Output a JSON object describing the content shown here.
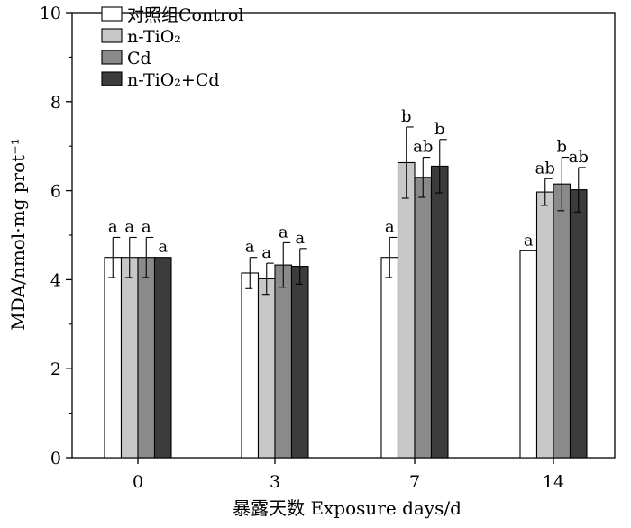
{
  "chart_data": {
    "type": "bar",
    "ylabel": "MDA/nmol·mg prot⁻¹",
    "xlabel": "暴露天数 Exposure days/d",
    "categories": [
      "0",
      "3",
      "7",
      "14"
    ],
    "ylim": [
      0,
      10
    ],
    "yticks": [
      "0",
      "2",
      "4",
      "6",
      "8",
      "10"
    ],
    "grid": false,
    "legend_position": "top-left",
    "series": [
      {
        "name": "对照组Control",
        "color": "#ffffff",
        "values": [
          4.5,
          4.15,
          4.5,
          4.65
        ],
        "errors": [
          0.45,
          0.35,
          0.45,
          0.0
        ],
        "letters": [
          "a",
          "a",
          "a",
          "a"
        ]
      },
      {
        "name": "n-TiO₂",
        "color": "#c8c8c8",
        "values": [
          4.5,
          4.02,
          6.63,
          5.97
        ],
        "errors": [
          0.45,
          0.35,
          0.8,
          0.3
        ],
        "letters": [
          "a",
          "a",
          "b",
          "ab"
        ]
      },
      {
        "name": "Cd",
        "color": "#8a8a8a",
        "values": [
          4.5,
          4.33,
          6.3,
          6.15
        ],
        "errors": [
          0.45,
          0.5,
          0.45,
          0.6
        ],
        "letters": [
          "a",
          "a",
          "ab",
          "b"
        ]
      },
      {
        "name": "n-TiO₂+Cd",
        "color": "#3c3c3c",
        "values": [
          4.5,
          4.3,
          6.55,
          6.02
        ],
        "errors": [
          0.0,
          0.4,
          0.6,
          0.5
        ],
        "letters": [
          "a",
          "a",
          "b",
          "ab"
        ]
      }
    ]
  }
}
